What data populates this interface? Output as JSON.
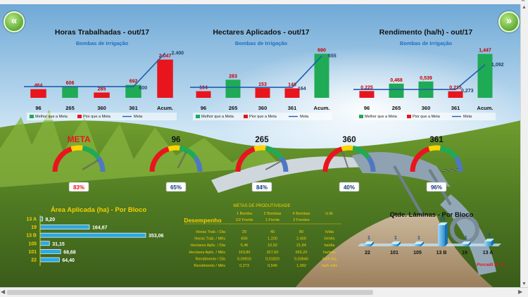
{
  "nav": {
    "back_icon": "double-chevron-left-icon",
    "forward_icon": "double-chevron-right-icon"
  },
  "colors": {
    "green": "#1faa55",
    "red": "#e8151d",
    "blue": "#1f5fae",
    "yellow": "#ffd400",
    "orange": "#f5a300",
    "gauge_blue": "#4f78c3"
  },
  "legend": {
    "better": "Melhor que a Meta",
    "worse": "Pior que a Meta",
    "target": "Meta"
  },
  "charts": [
    {
      "title": "Horas Trabalhadas - out/17",
      "subtitle": "Bombas de Irrigação",
      "categories": [
        "96",
        "265",
        "360",
        "361",
        "Acum."
      ],
      "bars": [
        {
          "label": "464",
          "value": 464,
          "status": "worse"
        },
        {
          "label": "606",
          "value": 606,
          "status": "better"
        },
        {
          "label": "285",
          "value": 285,
          "status": "worse"
        },
        {
          "label": "692",
          "value": 692,
          "status": "better"
        },
        {
          "label": "2.047",
          "value": 2047,
          "status": "worse"
        }
      ],
      "target": [
        {
          "label": "",
          "value": 600
        },
        {
          "label": "",
          "value": 600
        },
        {
          "label": "",
          "value": 600
        },
        {
          "label": "600",
          "value": 600
        },
        {
          "label": "2.400",
          "value": 2400
        }
      ],
      "ymax": 2600
    },
    {
      "title": "Hectares Aplicados - out/17",
      "subtitle": "Bombas de Irrigação",
      "categories": [
        "96",
        "265",
        "360",
        "361",
        "Acum."
      ],
      "bars": [
        {
          "label": "104",
          "value": 104,
          "status": "worse"
        },
        {
          "label": "283",
          "value": 283,
          "status": "better"
        },
        {
          "label": "153",
          "value": 153,
          "status": "worse"
        },
        {
          "label": "149",
          "value": 149,
          "status": "worse"
        },
        {
          "label": "690",
          "value": 690,
          "status": "better"
        }
      ],
      "target": [
        {
          "label": "",
          "value": 164
        },
        {
          "label": "",
          "value": 164
        },
        {
          "label": "",
          "value": 164
        },
        {
          "label": "164",
          "value": 164
        },
        {
          "label": "655",
          "value": 655
        }
      ],
      "ymax": 760
    },
    {
      "title": "Rendimento (ha/h) - out/17",
      "subtitle": "Bombas de Irrigação",
      "categories": [
        "96",
        "265",
        "360",
        "361",
        "Acum."
      ],
      "bars": [
        {
          "label": "0,225",
          "value": 0.225,
          "status": "worse"
        },
        {
          "label": "0,468",
          "value": 0.468,
          "status": "better"
        },
        {
          "label": "0,539",
          "value": 0.539,
          "status": "better"
        },
        {
          "label": "0,215",
          "value": 0.215,
          "status": "worse"
        },
        {
          "label": "1,447",
          "value": 1.447,
          "status": "better"
        }
      ],
      "target": [
        {
          "label": "",
          "value": 0.273
        },
        {
          "label": "",
          "value": 0.273
        },
        {
          "label": "",
          "value": 0.273
        },
        {
          "label": "0,273",
          "value": 0.273
        },
        {
          "label": "1,092",
          "value": 1.092
        }
      ],
      "ymax": 1.6
    }
  ],
  "gauges": [
    {
      "title": "META",
      "value_text": "83%",
      "value": 83,
      "red_title": true
    },
    {
      "title": "96",
      "value_text": "65%",
      "value": 65,
      "red_title": false
    },
    {
      "title": "265",
      "value_text": "84%",
      "value": 84,
      "red_title": false
    },
    {
      "title": "360",
      "value_text": "40%",
      "value": 40,
      "red_title": false
    },
    {
      "title": "361",
      "value_text": "96%",
      "value": 96,
      "red_title": false
    }
  ],
  "area_chart": {
    "title": "Área Aplicada (ha) - Por Bloco",
    "categories": [
      "13 A",
      "19",
      "13 B",
      "105",
      "101",
      "22"
    ],
    "values": [
      8.2,
      164.67,
      353.06,
      31.15,
      68.68,
      64.4
    ],
    "labels": [
      "8,20",
      "164,67",
      "353,06",
      "31,15",
      "68,68",
      "64,40"
    ]
  },
  "metas": {
    "title": "METAS DE PRODUTIVIDADE",
    "left_label": "Desempenho",
    "header_top": [
      "1 Bomba",
      "2 Bombas",
      "4 Bombas",
      "U.M."
    ],
    "header_bottom": [
      "1/2 Frente",
      "1 Frente",
      "2 Frentes",
      ""
    ],
    "rows": [
      [
        "Horas Trab. / Dia",
        "20",
        "40",
        "80",
        "h/dia"
      ],
      [
        "Horas Trab. / Mês",
        "600",
        "1.200",
        "2.400",
        "h/mês"
      ],
      [
        "Hectares Aplic. / Dia",
        "5,46",
        "10,92",
        "21,84",
        "ha/dia"
      ],
      [
        "Hectares Aplic. / Mês",
        "163,80",
        "327,60",
        "655,20",
        "ha/mês"
      ],
      [
        "Rendimento / Dia",
        "0,00910",
        "0,01820",
        "0,03640",
        "ha/h dia"
      ],
      [
        "Rendimento / Mês",
        "0,273",
        "0,546",
        "1,092",
        "ha/h mês"
      ]
    ]
  },
  "laminas": {
    "title": "Qtde. Lâminas - Por Bloco",
    "categories": [
      "22",
      "101",
      "105",
      "13 B",
      "19",
      "13 A"
    ],
    "values": [
      1,
      1,
      1,
      22,
      1,
      5
    ],
    "labels": [
      "1",
      "1",
      "1",
      "22",
      "1",
      "5"
    ]
  },
  "author": "Porcelli A. Jr."
}
